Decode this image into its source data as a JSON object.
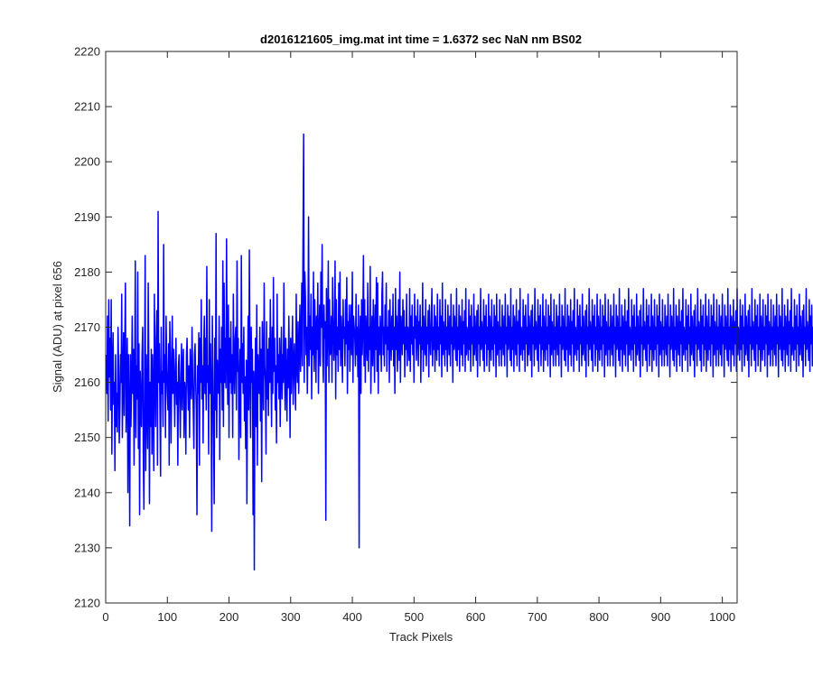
{
  "chart_data": {
    "type": "line",
    "title": "d2016121605_img.mat int time = 1.6372 sec  NaN nm BS02",
    "xlabel": "Track Pixels",
    "ylabel": "Signal (ADU) at pixel 656",
    "xlim": [
      0,
      1024
    ],
    "ylim": [
      2120,
      2220
    ],
    "xticks": [
      0,
      100,
      200,
      300,
      400,
      500,
      600,
      700,
      800,
      900,
      1000
    ],
    "yticks": [
      2120,
      2130,
      2140,
      2150,
      2160,
      2170,
      2180,
      2190,
      2200,
      2210,
      2220
    ],
    "grid": false,
    "line_color": "#0000ff",
    "x_start": 1,
    "x_step": 1,
    "series": [
      {
        "values": [
          2165,
          2158,
          2172,
          2153,
          2175,
          2161,
          2168,
          2155,
          2175,
          2147,
          2163,
          2169,
          2156,
          2160,
          2144,
          2165,
          2152,
          2158,
          2151,
          2170,
          2163,
          2149,
          2155,
          2165,
          2160,
          2176,
          2150,
          2160,
          2169,
          2154,
          2167,
          2178,
          2151,
          2158,
          2168,
          2140,
          2165,
          2155,
          2134,
          2165,
          2152,
          2160,
          2172,
          2158,
          2166,
          2145,
          2160,
          2182,
          2150,
          2163,
          2157,
          2180,
          2148,
          2167,
          2136,
          2162,
          2155,
          2152,
          2165,
          2170,
          2146,
          2137,
          2159,
          2183,
          2144,
          2165,
          2155,
          2148,
          2178,
          2162,
          2138,
          2160,
          2152,
          2166,
          2147,
          2165,
          2157,
          2144,
          2176,
          2161,
          2152,
          2168,
          2173,
          2145,
          2191,
          2160,
          2167,
          2155,
          2143,
          2170,
          2158,
          2162,
          2152,
          2185,
          2160,
          2165,
          2150,
          2172,
          2163,
          2158,
          2155,
          2167,
          2145,
          2171,
          2165,
          2149,
          2160,
          2172,
          2158,
          2166,
          2160,
          2152,
          2163,
          2168,
          2156,
          2160,
          2145,
          2163,
          2165,
          2157,
          2150,
          2161,
          2167,
          2155,
          2163,
          2166,
          2150,
          2160,
          2158,
          2147,
          2165,
          2168,
          2160,
          2155,
          2163,
          2150,
          2166,
          2160,
          2157,
          2170,
          2162,
          2155,
          2148,
          2165,
          2167,
          2160,
          2155,
          2136,
          2163,
          2158,
          2169,
          2145,
          2168,
          2160,
          2175,
          2157,
          2163,
          2149,
          2166,
          2172,
          2158,
          2168,
          2155,
          2181,
          2160,
          2163,
          2147,
          2175,
          2158,
          2167,
          2157,
          2133,
          2172,
          2162,
          2151,
          2138,
          2168,
          2155,
          2187,
          2150,
          2164,
          2160,
          2158,
          2172,
          2146,
          2166,
          2160,
          2170,
          2155,
          2182,
          2152,
          2178,
          2160,
          2168,
          2159,
          2186,
          2165,
          2156,
          2174,
          2150,
          2168,
          2160,
          2171,
          2158,
          2165,
          2150,
          2176,
          2163,
          2158,
          2168,
          2170,
          2155,
          2182,
          2162,
          2168,
          2146,
          2160,
          2166,
          2150,
          2183,
          2160,
          2167,
          2158,
          2170,
          2153,
          2161,
          2148,
          2164,
          2138,
          2160,
          2172,
          2155,
          2184,
          2162,
          2150,
          2170,
          2160,
          2166,
          2136,
          2162,
          2126,
          2158,
          2168,
          2152,
          2174,
          2145,
          2165,
          2160,
          2158,
          2170,
          2153,
          2166,
          2142,
          2171,
          2162,
          2155,
          2178,
          2163,
          2160,
          2147,
          2171,
          2157,
          2166,
          2154,
          2168,
          2160,
          2175,
          2163,
          2152,
          2170,
          2158,
          2179,
          2162,
          2168,
          2155,
          2163,
          2149,
          2176,
          2160,
          2165,
          2157,
          2168,
          2152,
          2163,
          2170,
          2157,
          2165,
          2160,
          2178,
          2163,
          2155,
          2168,
          2161,
          2153,
          2166,
          2159,
          2172,
          2163,
          2150,
          2168,
          2158,
          2165,
          2172,
          2156,
          2163,
          2167,
          2160,
          2155,
          2176,
          2163,
          2160,
          2171,
          2158,
          2166,
          2174,
          2162,
          2168,
          2178,
          2163,
          2186,
          2205,
          2160,
          2180,
          2175,
          2165,
          2170,
          2158,
          2168,
          2190,
          2163,
          2172,
          2166,
          2176,
          2157,
          2170,
          2165,
          2180,
          2162,
          2175,
          2169,
          2160,
          2172,
          2166,
          2178,
          2158,
          2168,
          2174,
          2163,
          2180,
          2170,
          2185,
          2165,
          2160,
          2174,
          2168,
          2171,
          2135,
          2177,
          2163,
          2170,
          2182,
          2160,
          2175,
          2165,
          2166,
          2172,
          2160,
          2179,
          2171,
          2164,
          2167,
          2182,
          2157,
          2175,
          2165,
          2170,
          2162,
          2178,
          2166,
          2180,
          2163,
          2172,
          2168,
          2160,
          2175,
          2168,
          2170,
          2163,
          2175,
          2167,
          2179,
          2158,
          2171,
          2166,
          2174,
          2162,
          2169,
          2174,
          2165,
          2180,
          2160,
          2172,
          2170,
          2168,
          2163,
          2176,
          2165,
          2170,
          2161,
          2174,
          2130,
          2168,
          2172,
          2158,
          2175,
          2165,
          2170,
          2183,
          2163,
          2175,
          2160,
          2172,
          2168,
          2164,
          2178,
          2162,
          2170,
          2166,
          2181,
          2158,
          2167,
          2172,
          2163,
          2175,
          2168,
          2160,
          2174,
          2166,
          2179,
          2162,
          2178,
          2158,
          2170,
          2165,
          2172,
          2168,
          2162,
          2176,
          2180,
          2165,
          2170,
          2163,
          2174,
          2167,
          2178,
          2162,
          2170,
          2166,
          2173,
          2160,
          2175,
          2168,
          2164,
          2172,
          2166,
          2176,
          2163,
          2170,
          2158,
          2177,
          2166,
          2172,
          2162,
          2168,
          2175,
          2164,
          2180,
          2160,
          2172,
          2169,
          2165,
          2175,
          2167,
          2173,
          2161,
          2170,
          2166,
          2176,
          2163,
          2170,
          2168,
          2164,
          2177,
          2162,
          2172,
          2167,
          2174,
          2165,
          2170,
          2160,
          2176,
          2168,
          2172,
          2164,
          2169,
          2175,
          2163,
          2171,
          2167,
          2174,
          2160,
          2170,
          2166,
          2178,
          2162,
          2172,
          2168,
          2165,
          2175,
          2163,
          2170,
          2167,
          2173,
          2161,
          2174,
          2168,
          2165,
          2171,
          2177,
          2163,
          2170,
          2166,
          2174,
          2162,
          2172,
          2168,
          2164,
          2176,
          2166,
          2170,
          2163,
          2175,
          2167,
          2172,
          2161,
          2178,
          2165,
          2171,
          2168,
          2163,
          2175,
          2166,
          2170,
          2162,
          2174,
          2168,
          2165,
          2172,
          2163,
          2176,
          2167,
          2170,
          2160,
          2174,
          2166,
          2172,
          2168,
          2164,
          2177,
          2163,
          2170,
          2166,
          2174,
          2162,
          2172,
          2168,
          2165,
          2175,
          2163,
          2171,
          2167,
          2173,
          2162,
          2177,
          2165,
          2170,
          2168,
          2164,
          2175,
          2166,
          2172,
          2162,
          2174,
          2167,
          2170,
          2163,
          2176,
          2165,
          2172,
          2168,
          2164,
          2173,
          2161,
          2174,
          2167,
          2170,
          2163,
          2177,
          2166,
          2171,
          2168,
          2164,
          2175,
          2162,
          2172,
          2167,
          2174,
          2163,
          2170,
          2166,
          2176,
          2162,
          2172,
          2168,
          2164,
          2175,
          2166,
          2170,
          2163,
          2174,
          2167,
          2172,
          2161,
          2176,
          2165,
          2171,
          2168,
          2163,
          2175,
          2166,
          2170,
          2163,
          2174,
          2168,
          2165,
          2172,
          2163,
          2176,
          2167,
          2170,
          2161,
          2174,
          2166,
          2172,
          2168,
          2164,
          2177,
          2163,
          2170,
          2166,
          2174,
          2162,
          2172,
          2168,
          2165,
          2175,
          2163,
          2171,
          2167,
          2173,
          2162,
          2177,
          2165,
          2170,
          2168,
          2164,
          2175,
          2166,
          2172,
          2162,
          2174,
          2167,
          2170,
          2163,
          2176,
          2165,
          2172,
          2168,
          2164,
          2173,
          2161,
          2174,
          2167,
          2170,
          2163,
          2177,
          2166,
          2171,
          2168,
          2164,
          2175,
          2162,
          2172,
          2167,
          2174,
          2163,
          2170,
          2166,
          2176,
          2162,
          2172,
          2168,
          2164,
          2175,
          2166,
          2170,
          2163,
          2174,
          2167,
          2172,
          2161,
          2176,
          2165,
          2171,
          2168,
          2163,
          2175,
          2166,
          2170,
          2163,
          2174,
          2168,
          2165,
          2172,
          2163,
          2176,
          2167,
          2170,
          2161,
          2174,
          2166,
          2172,
          2168,
          2164,
          2177,
          2163,
          2170,
          2166,
          2174,
          2162,
          2172,
          2168,
          2165,
          2175,
          2163,
          2171,
          2167,
          2173,
          2162,
          2177,
          2165,
          2170,
          2168,
          2164,
          2175,
          2166,
          2172,
          2162,
          2174,
          2167,
          2170,
          2163,
          2176,
          2165,
          2172,
          2168,
          2164,
          2173,
          2161,
          2174,
          2167,
          2170,
          2163,
          2177,
          2166,
          2171,
          2168,
          2164,
          2175,
          2162,
          2172,
          2167,
          2174,
          2163,
          2170,
          2166,
          2176,
          2162,
          2172,
          2168,
          2164,
          2175,
          2166,
          2170,
          2163,
          2174,
          2167,
          2172,
          2161,
          2176,
          2165,
          2171,
          2168,
          2163,
          2175,
          2166,
          2170,
          2163,
          2174,
          2168,
          2165,
          2172,
          2163,
          2176,
          2167,
          2170,
          2161,
          2174,
          2166,
          2172,
          2168,
          2164,
          2177,
          2163,
          2170,
          2166,
          2174,
          2162,
          2172,
          2168,
          2165,
          2175,
          2163,
          2171,
          2167,
          2173,
          2162,
          2177,
          2165,
          2170,
          2168,
          2164,
          2175,
          2166,
          2172,
          2162,
          2174,
          2167,
          2170,
          2163,
          2176,
          2165,
          2172,
          2168,
          2164,
          2173,
          2161,
          2174,
          2167,
          2170,
          2163,
          2177,
          2166,
          2171,
          2168,
          2164,
          2175,
          2162,
          2172,
          2167,
          2174,
          2163,
          2170,
          2166,
          2176,
          2162,
          2172,
          2168,
          2164,
          2175,
          2166,
          2170,
          2163,
          2174,
          2167,
          2172,
          2161,
          2176,
          2165,
          2171,
          2168,
          2163,
          2175,
          2166,
          2170,
          2163,
          2174,
          2168,
          2165,
          2172,
          2163,
          2176,
          2167,
          2170,
          2161,
          2174,
          2166,
          2172,
          2168,
          2164,
          2177,
          2163,
          2170,
          2166,
          2174,
          2162,
          2172,
          2168,
          2165,
          2175,
          2163,
          2171,
          2167,
          2173,
          2162,
          2177,
          2165,
          2170,
          2168,
          2164,
          2175,
          2166,
          2172,
          2162,
          2174,
          2167,
          2170,
          2163,
          2176,
          2165,
          2172,
          2168,
          2164,
          2173,
          2161,
          2174,
          2167,
          2170,
          2163,
          2177,
          2166,
          2171,
          2168,
          2164,
          2175,
          2162,
          2172,
          2167,
          2174,
          2163,
          2170,
          2166,
          2176,
          2162,
          2172,
          2168,
          2164,
          2175,
          2166,
          2170,
          2163,
          2174,
          2167,
          2172,
          2161,
          2176,
          2165,
          2171,
          2168,
          2163,
          2175,
          2166,
          2170,
          2163,
          2174,
          2168,
          2165,
          2172,
          2163,
          2176,
          2167,
          2170,
          2161,
          2174,
          2166,
          2172,
          2168,
          2164,
          2177,
          2163,
          2170,
          2166,
          2174,
          2162,
          2172,
          2168,
          2165,
          2175,
          2163,
          2171,
          2167,
          2173,
          2162,
          2177,
          2165,
          2170,
          2168,
          2164,
          2175,
          2166,
          2172,
          2162,
          2174,
          2167,
          2170,
          2163,
          2176,
          2165,
          2172,
          2168,
          2164,
          2173,
          2161,
          2174,
          2167,
          2170,
          2163,
          2177,
          2166,
          2171,
          2168,
          2164,
          2175,
          2162,
          2172,
          2167,
          2174,
          2163,
          2170,
          2166,
          2176,
          2162,
          2172,
          2168,
          2164,
          2175,
          2166,
          2170,
          2163,
          2174,
          2167,
          2172,
          2161,
          2176,
          2165,
          2171,
          2168,
          2163,
          2175,
          2166,
          2170,
          2163,
          2174,
          2168,
          2165,
          2172,
          2163,
          2176,
          2167,
          2170,
          2161,
          2174,
          2166,
          2172,
          2168,
          2164,
          2177,
          2163,
          2170,
          2166,
          2174,
          2162,
          2172,
          2168,
          2165,
          2175,
          2163,
          2171,
          2167,
          2173,
          2162,
          2177,
          2165,
          2170,
          2168,
          2164,
          2175,
          2166,
          2172,
          2162,
          2174,
          2167,
          2170,
          2163,
          2176,
          2165,
          2172,
          2168,
          2164,
          2173,
          2161,
          2174,
          2167,
          2170,
          2163,
          2177,
          2166,
          2171,
          2168,
          2164,
          2175,
          2162,
          2172,
          2167,
          2174,
          2163,
          2170,
          2166,
          2176,
          2162,
          2172,
          2168,
          2164,
          2175
        ]
      }
    ]
  }
}
